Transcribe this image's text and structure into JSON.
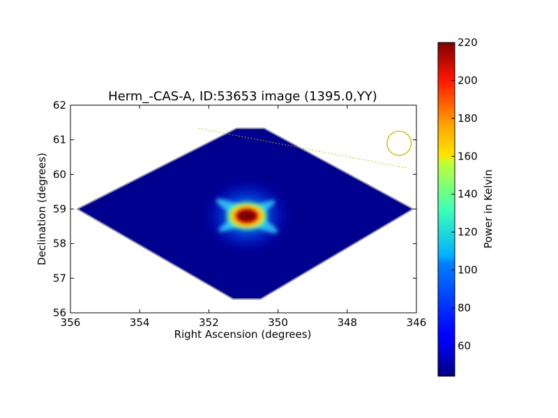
{
  "chart_data": {
    "type": "heatmap",
    "title": "Herm_-CAS-A, ID:53653 image (1395.0,YY)",
    "xlabel": "Right Ascension (degrees)",
    "ylabel": "Declination (degrees)",
    "xlim": [
      356,
      346
    ],
    "ylim": [
      56,
      62
    ],
    "x_ticks": [
      356,
      354,
      352,
      350,
      348,
      346
    ],
    "y_ticks": [
      56,
      57,
      58,
      59,
      60,
      61,
      62
    ],
    "grid": false,
    "colormap": "jet",
    "background_value": 44,
    "colorbar": {
      "label": "Power in Kelvin",
      "range": [
        44,
        220
      ],
      "ticks": [
        60,
        80,
        100,
        120,
        140,
        160,
        180,
        200,
        220
      ]
    },
    "footprint": [
      [
        351.2,
        61.33
      ],
      [
        350.4,
        61.33
      ],
      [
        346.1,
        59.0
      ],
      [
        350.5,
        56.4
      ],
      [
        351.3,
        56.4
      ],
      [
        355.8,
        59.0
      ]
    ],
    "peak": {
      "ra": 350.9,
      "dec": 58.8,
      "value": 220
    },
    "beam_circle": {
      "ra": 346.5,
      "dec": 60.9,
      "radius_deg": 0.35
    },
    "track": {
      "start": [
        352.3,
        61.33
      ],
      "end": [
        346.25,
        60.18
      ]
    },
    "colors": {
      "footprint_edge": "#8e8eb0",
      "beam": "#c8b400",
      "track": "#c8b400"
    }
  }
}
